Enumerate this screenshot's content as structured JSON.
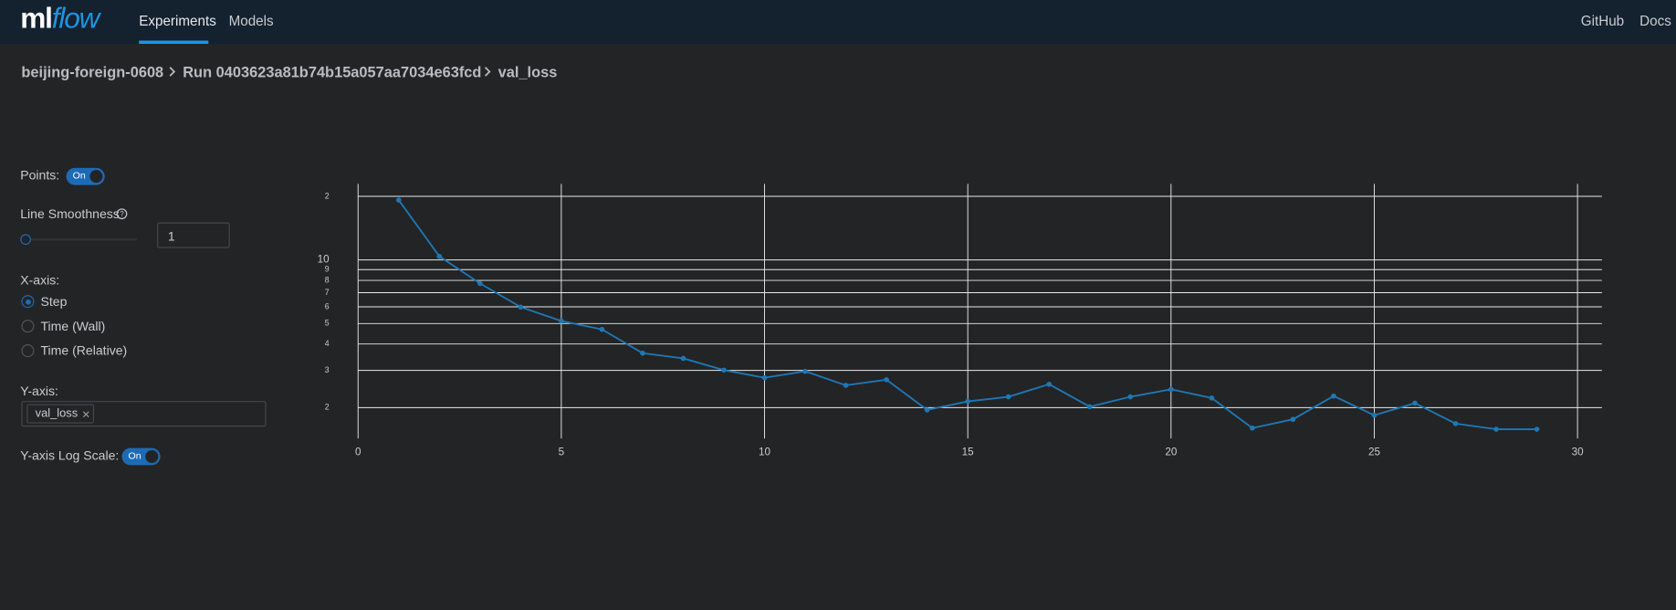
{
  "navbar": {
    "logo_ml": "ml",
    "logo_flow": "flow",
    "nav_links": [
      "Experiments",
      "Models"
    ],
    "right_links": [
      "GitHub",
      "Docs"
    ]
  },
  "breadcrumb": [
    "beijing-foreign-0608",
    "Run 0403623a81b74b15a057aa7034e63fcd",
    "val_loss"
  ],
  "controls": {
    "points_label": "Points:",
    "points_toggle": "On",
    "smoothness_label": "Line Smoothness",
    "smoothness_value": "1",
    "x_axis_label": "X-axis:",
    "x_axis_options": [
      "Step",
      "Time (Wall)",
      "Time (Relative)"
    ],
    "y_axis_label": "Y-axis:",
    "y_axis_tag": "val_loss",
    "log_scale_label": "Y-axis Log Scale:",
    "log_scale_toggle": "On"
  },
  "chart_data": {
    "type": "line",
    "x": [
      1,
      2,
      3,
      4,
      5,
      6,
      7,
      8,
      9,
      10,
      11,
      12,
      13,
      14,
      15,
      16,
      17,
      18,
      19,
      20,
      21,
      22,
      23,
      24,
      25,
      26,
      27,
      28,
      29
    ],
    "values": [
      19.2,
      10.4,
      7.74,
      5.98,
      5.14,
      4.69,
      3.62,
      3.42,
      3.01,
      2.77,
      2.97,
      2.55,
      2.71,
      1.95,
      2.14,
      2.25,
      2.58,
      2.02,
      2.25,
      2.44,
      2.22,
      1.6,
      1.76,
      2.27,
      1.84,
      2.1,
      1.68,
      1.58,
      1.58
    ],
    "color": "#1f77b4",
    "xlim": [
      0,
      30.6
    ],
    "xticks": [
      0,
      5,
      10,
      15,
      20,
      25,
      30
    ],
    "ylim": [
      1.43,
      22.9
    ],
    "yticks": [
      {
        "value": 20,
        "label": "2"
      },
      10,
      9,
      8,
      7,
      6,
      5,
      4,
      3,
      2
    ],
    "log_y": true,
    "grid": true,
    "markers": true
  }
}
